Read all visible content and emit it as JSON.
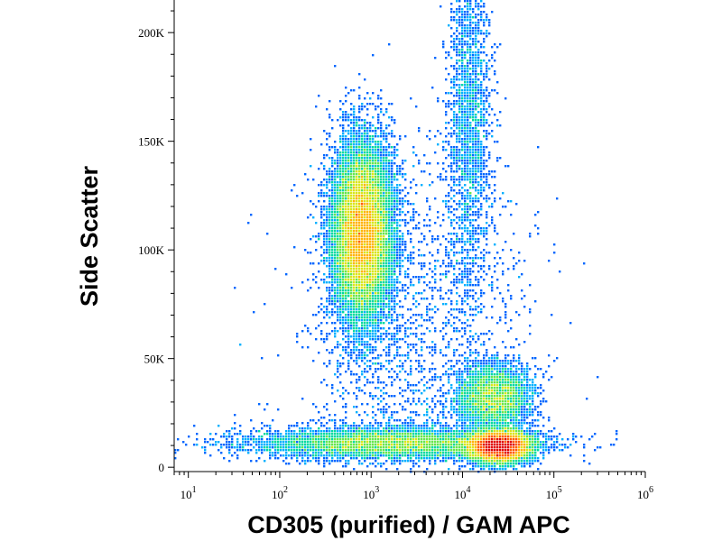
{
  "chart_data": {
    "type": "scatter",
    "subtype": "flow-cytometry density dot plot",
    "xlabel": "CD305 (purified) / GAM APC",
    "ylabel": "Side Scatter",
    "x_scale": "log",
    "y_scale": "linear",
    "xlim": [
      7,
      1000000
    ],
    "ylim": [
      -2000,
      215000
    ],
    "x_ticks": [
      {
        "value": 10,
        "base": "10",
        "exp": "1"
      },
      {
        "value": 100,
        "base": "10",
        "exp": "2"
      },
      {
        "value": 1000,
        "base": "10",
        "exp": "3"
      },
      {
        "value": 10000,
        "base": "10",
        "exp": "4"
      },
      {
        "value": 100000,
        "base": "10",
        "exp": "5"
      },
      {
        "value": 1000000,
        "base": "10",
        "exp": "6"
      }
    ],
    "y_ticks": [
      {
        "value": 0,
        "label": "0"
      },
      {
        "value": 50000,
        "label": "50K"
      },
      {
        "value": 100000,
        "label": "100K"
      },
      {
        "value": 150000,
        "label": "150K"
      },
      {
        "value": 200000,
        "label": "200K"
      }
    ],
    "grid": false,
    "legend": "none",
    "color_scale": [
      "#0000cc",
      "#0066ff",
      "#00b0ff",
      "#00d9a0",
      "#66e64d",
      "#d9e61a",
      "#ffb300",
      "#ff5a00",
      "#e00000"
    ],
    "populations": [
      {
        "center_x": 800,
        "center_y": 108000,
        "spread_log10": 0.16,
        "spread_y": 20000,
        "share": 0.42
      },
      {
        "center_x": 25000,
        "center_y": 9500,
        "spread_log10": 0.17,
        "spread_y": 3500,
        "share": 0.24
      },
      {
        "center_x": 22000,
        "center_y": 32000,
        "spread_log10": 0.2,
        "spread_y": 7500,
        "share": 0.09
      },
      {
        "center_x": 1500,
        "center_y": 11000,
        "spread_log10": 0.75,
        "spread_y": 3500,
        "share": 0.15
      },
      {
        "center_x": 12000,
        "center_y": 160000,
        "spread_log10": 0.12,
        "spread_y": 40000,
        "share": 0.05
      },
      {
        "center_x": 3000,
        "center_y": 60000,
        "spread_log10": 0.6,
        "spread_y": 45000,
        "share": 0.05
      }
    ]
  }
}
